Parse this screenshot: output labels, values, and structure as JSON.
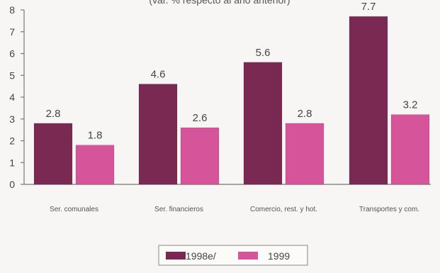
{
  "chart_data": {
    "type": "bar",
    "subtitle": "(var. % respecto al año anterior)",
    "categories": [
      "Ser. comunales",
      "Ser. financieros",
      "Comercio, rest. y hot.",
      "Transportes y com."
    ],
    "series": [
      {
        "name": "1998e/",
        "values": [
          2.8,
          4.6,
          5.6,
          7.7
        ],
        "color": "#7a2a52"
      },
      {
        "name": "1999",
        "values": [
          1.8,
          2.6,
          2.8,
          3.2
        ],
        "color": "#d6559a"
      }
    ],
    "ylim": [
      0,
      8
    ],
    "yticks": [
      0,
      1,
      2,
      3,
      4,
      5,
      6,
      7,
      8
    ],
    "grid": false,
    "legend_position": "bottom-center"
  }
}
